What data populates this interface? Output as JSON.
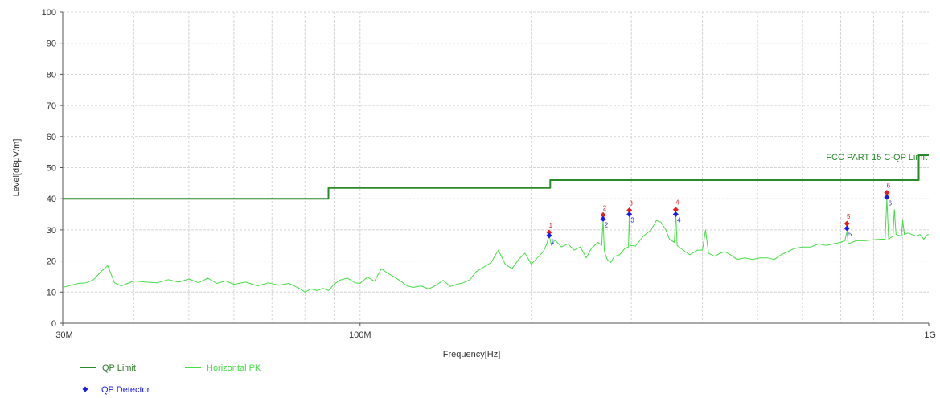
{
  "chart_data": {
    "type": "line",
    "xlabel": "Frequency[Hz]",
    "ylabel": "Level[dBμV/m]",
    "x_scale": "log",
    "x_range_hz": [
      30000000,
      1000000000
    ],
    "y_range": [
      0,
      100
    ],
    "grid": true,
    "x_tick_labels": [
      {
        "hz": 30000000,
        "label": "30M"
      },
      {
        "hz": 100000000,
        "label": "100M"
      },
      {
        "hz": 1000000000,
        "label": "1G"
      }
    ],
    "x_minor_gridlines_hz": [
      40000000,
      50000000,
      60000000,
      70000000,
      80000000,
      90000000,
      200000000,
      300000000,
      400000000,
      500000000,
      600000000,
      700000000,
      800000000,
      900000000
    ],
    "y_ticks": [
      0,
      10,
      20,
      30,
      40,
      50,
      60,
      70,
      80,
      90,
      100
    ],
    "limit_label": "FCC PART 15 C-QP Limit",
    "series": [
      {
        "name": "QP Limit",
        "color": "#2a8a2a",
        "style": "step",
        "points": [
          [
            30000000,
            40.0
          ],
          [
            88000000,
            40.0
          ],
          [
            88000000,
            43.5
          ],
          [
            216000000,
            43.5
          ],
          [
            216000000,
            46.0
          ],
          [
            960000000,
            46.0
          ],
          [
            960000000,
            54.0
          ],
          [
            1000000000,
            54.0
          ]
        ]
      },
      {
        "name": "Horizontal PK",
        "color": "#44dd44",
        "style": "line",
        "points": [
          [
            30000000,
            11.5
          ],
          [
            31000000,
            12.2
          ],
          [
            32000000,
            12.8
          ],
          [
            33000000,
            13.0
          ],
          [
            34000000,
            14.0
          ],
          [
            35000000,
            16.5
          ],
          [
            36000000,
            18.5
          ],
          [
            37000000,
            13.0
          ],
          [
            38000000,
            12.0
          ],
          [
            40000000,
            13.6
          ],
          [
            42000000,
            13.2
          ],
          [
            44000000,
            13.0
          ],
          [
            46000000,
            14.0
          ],
          [
            48000000,
            13.2
          ],
          [
            50000000,
            14.2
          ],
          [
            52000000,
            13.0
          ],
          [
            54000000,
            14.5
          ],
          [
            56000000,
            12.8
          ],
          [
            58000000,
            13.6
          ],
          [
            60000000,
            12.5
          ],
          [
            63000000,
            13.2
          ],
          [
            66000000,
            12.0
          ],
          [
            69000000,
            13.0
          ],
          [
            72000000,
            12.2
          ],
          [
            75000000,
            12.8
          ],
          [
            78000000,
            11.3
          ],
          [
            80000000,
            10.0
          ],
          [
            82000000,
            11.0
          ],
          [
            84000000,
            10.5
          ],
          [
            86000000,
            11.2
          ],
          [
            88000000,
            10.5
          ],
          [
            90000000,
            12.5
          ],
          [
            92000000,
            13.8
          ],
          [
            95000000,
            14.5
          ],
          [
            98000000,
            13.0
          ],
          [
            100000000,
            12.8
          ],
          [
            103000000,
            14.8
          ],
          [
            106000000,
            13.5
          ],
          [
            109000000,
            17.5
          ],
          [
            112000000,
            16.0
          ],
          [
            115000000,
            14.8
          ],
          [
            118000000,
            13.5
          ],
          [
            121000000,
            12.0
          ],
          [
            124000000,
            11.5
          ],
          [
            128000000,
            12.0
          ],
          [
            132000000,
            11.0
          ],
          [
            136000000,
            12.2
          ],
          [
            140000000,
            13.8
          ],
          [
            144000000,
            11.8
          ],
          [
            148000000,
            12.5
          ],
          [
            152000000,
            13.0
          ],
          [
            156000000,
            14.0
          ],
          [
            160000000,
            16.5
          ],
          [
            165000000,
            18.0
          ],
          [
            170000000,
            19.5
          ],
          [
            175000000,
            23.5
          ],
          [
            180000000,
            19.0
          ],
          [
            185000000,
            17.5
          ],
          [
            190000000,
            20.5
          ],
          [
            195000000,
            22.5
          ],
          [
            200000000,
            19.0
          ],
          [
            205000000,
            21.0
          ],
          [
            210000000,
            23.0
          ],
          [
            213000000,
            25.5
          ],
          [
            215000000,
            28.5
          ],
          [
            217000000,
            25.0
          ],
          [
            220000000,
            26.8
          ],
          [
            226000000,
            24.5
          ],
          [
            232000000,
            25.5
          ],
          [
            238000000,
            23.5
          ],
          [
            244000000,
            24.5
          ],
          [
            250000000,
            21.0
          ],
          [
            255000000,
            24.0
          ],
          [
            262000000,
            26.0
          ],
          [
            266000000,
            25.0
          ],
          [
            267500000,
            33.0
          ],
          [
            269000000,
            23.0
          ],
          [
            272000000,
            20.5
          ],
          [
            276000000,
            19.5
          ],
          [
            280000000,
            21.5
          ],
          [
            286000000,
            22.0
          ],
          [
            292000000,
            24.0
          ],
          [
            296500000,
            24.5
          ],
          [
            297500000,
            35.0
          ],
          [
            298500000,
            25.0
          ],
          [
            305000000,
            24.8
          ],
          [
            315000000,
            28.0
          ],
          [
            325000000,
            30.0
          ],
          [
            332000000,
            33.0
          ],
          [
            338000000,
            32.5
          ],
          [
            345000000,
            30.0
          ],
          [
            350000000,
            27.0
          ],
          [
            357000000,
            26.0
          ],
          [
            359000000,
            35.5
          ],
          [
            361000000,
            25.0
          ],
          [
            370000000,
            23.5
          ],
          [
            380000000,
            22.0
          ],
          [
            392000000,
            23.5
          ],
          [
            400000000,
            23.5
          ],
          [
            405000000,
            30.0
          ],
          [
            410000000,
            22.5
          ],
          [
            420000000,
            21.5
          ],
          [
            430000000,
            22.5
          ],
          [
            438000000,
            23.0
          ],
          [
            448000000,
            22.0
          ],
          [
            460000000,
            20.5
          ],
          [
            475000000,
            21.0
          ],
          [
            490000000,
            20.5
          ],
          [
            505000000,
            21.0
          ],
          [
            520000000,
            21.0
          ],
          [
            535000000,
            20.5
          ],
          [
            550000000,
            22.0
          ],
          [
            565000000,
            23.0
          ],
          [
            580000000,
            24.0
          ],
          [
            600000000,
            24.5
          ],
          [
            620000000,
            24.5
          ],
          [
            640000000,
            25.5
          ],
          [
            660000000,
            25.0
          ],
          [
            680000000,
            25.5
          ],
          [
            700000000,
            26.0
          ],
          [
            712000000,
            26.5
          ],
          [
            718000000,
            29.5
          ],
          [
            722000000,
            25.5
          ],
          [
            745000000,
            26.5
          ],
          [
            770000000,
            26.5
          ],
          [
            800000000,
            26.8
          ],
          [
            825000000,
            27.0
          ],
          [
            838000000,
            27.0
          ],
          [
            844000000,
            40.0
          ],
          [
            850000000,
            27.0
          ],
          [
            865000000,
            28.0
          ],
          [
            870000000,
            36.5
          ],
          [
            876000000,
            28.5
          ],
          [
            895000000,
            28.0
          ],
          [
            900000000,
            33.0
          ],
          [
            906000000,
            28.5
          ],
          [
            920000000,
            29.0
          ],
          [
            935000000,
            28.5
          ],
          [
            950000000,
            28.0
          ],
          [
            965000000,
            28.5
          ],
          [
            980000000,
            27.0
          ],
          [
            995000000,
            28.5
          ],
          [
            1000000000,
            28.5
          ]
        ]
      }
    ],
    "qp_detector": {
      "name": "QP Detector",
      "color": "#1a1aee",
      "points": [
        {
          "id": "1",
          "hz": 215000000,
          "level": 28.2
        },
        {
          "id": "2",
          "hz": 267500000,
          "level": 33.5
        },
        {
          "id": "3",
          "hz": 297500000,
          "level": 35.0
        },
        {
          "id": "4",
          "hz": 359000000,
          "level": 35.0
        },
        {
          "id": "5",
          "hz": 718000000,
          "level": 30.5
        },
        {
          "id": "6",
          "hz": 844000000,
          "level": 40.5
        }
      ]
    },
    "peak_markers": {
      "color": "#e02020",
      "points": [
        {
          "id": "1",
          "hz": 215000000,
          "level": 29.2
        },
        {
          "id": "2",
          "hz": 267500000,
          "level": 34.8
        },
        {
          "id": "3",
          "hz": 297500000,
          "level": 36.3
        },
        {
          "id": "4",
          "hz": 359000000,
          "level": 36.5
        },
        {
          "id": "5",
          "hz": 718000000,
          "level": 32.0
        },
        {
          "id": "6",
          "hz": 844000000,
          "level": 42.0
        }
      ]
    },
    "legend": [
      {
        "label": "QP Limit",
        "kind": "line",
        "color": "#2a8a2a",
        "text_color": "#2a7a2a"
      },
      {
        "label": "Horizontal PK",
        "kind": "line",
        "color": "#44dd44",
        "text_color": "#44dd44"
      },
      {
        "label": "QP Detector",
        "kind": "diamond",
        "color": "#1a1aee",
        "text_color": "#1a1aee"
      }
    ]
  }
}
